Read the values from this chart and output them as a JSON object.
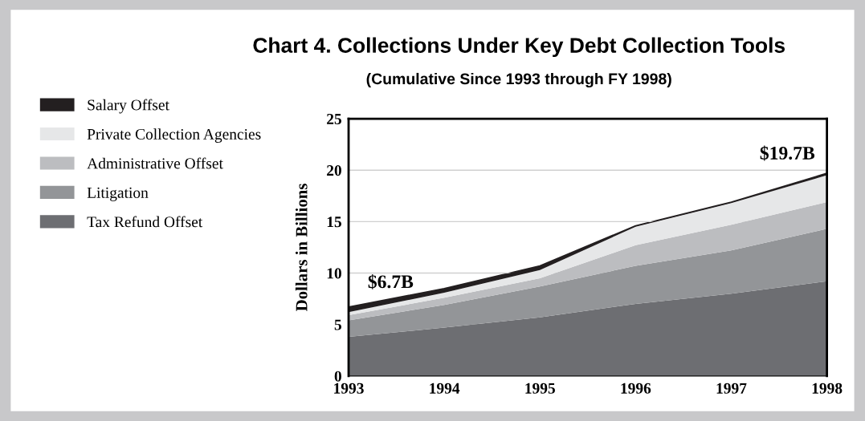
{
  "chart_data": {
    "type": "area",
    "stacked": true,
    "title": "Chart 4. Collections Under Key Debt Collection Tools",
    "subtitle": "(Cumulative Since 1993 through FY 1998)",
    "ylabel": "Dollars in Billions",
    "x": [
      1993,
      1994,
      1995,
      1996,
      1997,
      1998
    ],
    "xlim": [
      1993,
      1998
    ],
    "xticks": [
      1993,
      1994,
      1995,
      1996,
      1997,
      1998
    ],
    "ylim": [
      0,
      25
    ],
    "yticks": [
      0,
      5,
      10,
      15,
      20,
      25
    ],
    "grid": "y",
    "legend": "left",
    "series": [
      {
        "name": "Tax Refund Offset",
        "color": "#6d6e72",
        "values": [
          3.8,
          4.7,
          5.7,
          7.0,
          8.0,
          9.2
        ]
      },
      {
        "name": "Litigation",
        "color": "#939598",
        "values": [
          1.6,
          2.2,
          3.0,
          3.7,
          4.2,
          5.1
        ]
      },
      {
        "name": "Administrative Offset",
        "color": "#bcbdc0",
        "values": [
          0.5,
          0.7,
          0.8,
          2.0,
          2.5,
          2.6
        ]
      },
      {
        "name": "Private Collection Agencies",
        "color": "#e6e7e8",
        "values": [
          0.3,
          0.5,
          0.8,
          1.8,
          2.1,
          2.6
        ]
      },
      {
        "name": "Salary Offset",
        "color": "#231f20",
        "values": [
          0.5,
          0.4,
          0.4,
          0.1,
          0.1,
          0.2
        ]
      }
    ],
    "annotations": [
      "$6.7B",
      "$19.7B"
    ]
  }
}
